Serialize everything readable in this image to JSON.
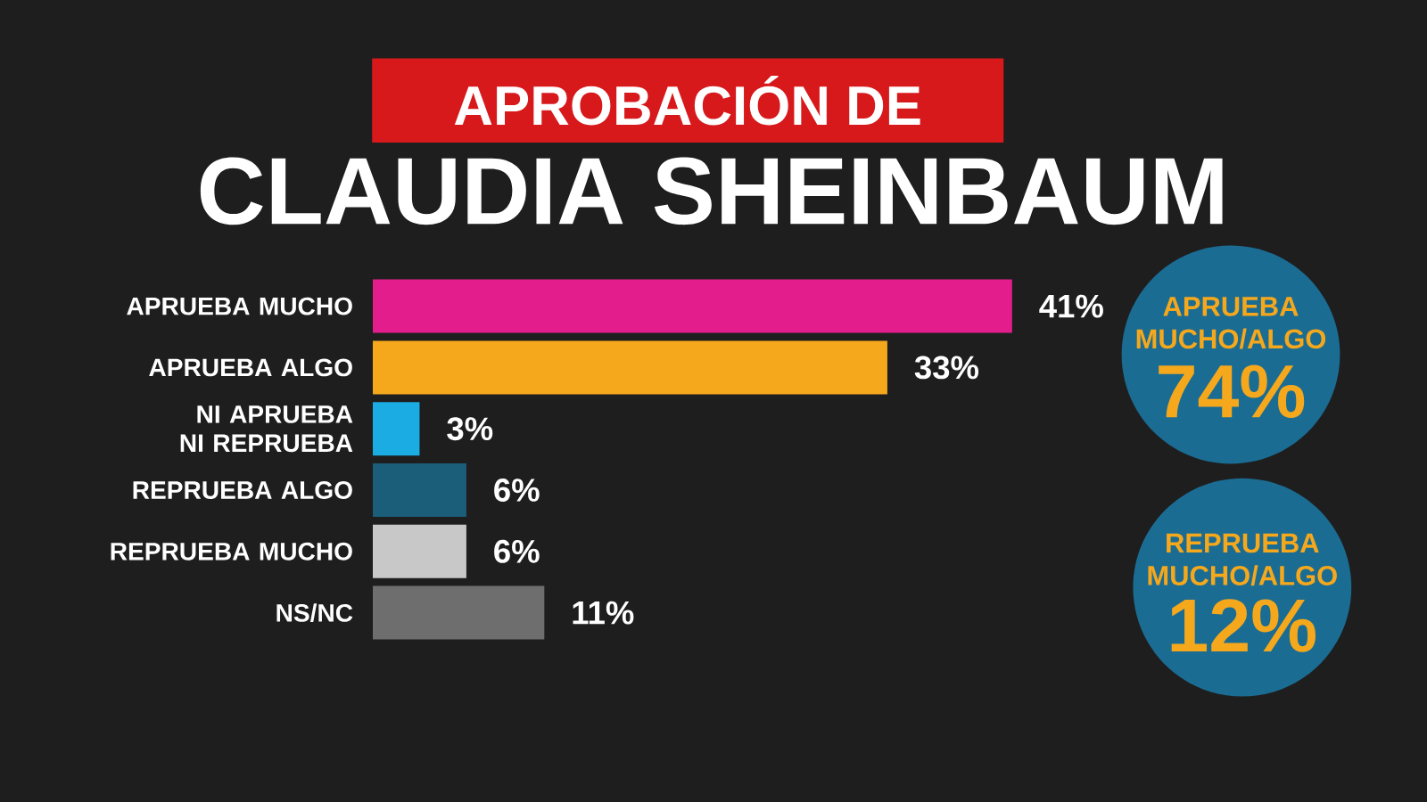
{
  "chart_data": {
    "type": "bar",
    "orientation": "horizontal",
    "title": "APROBACIÓN DE",
    "subtitle": "CLAUDIA SHEINBAUM",
    "categories": [
      "APRUEBA MUCHO",
      "APRUEBA ALGO",
      "NI APRUEBA NI REPRUEBA",
      "REPRUEBA ALGO",
      "REPRUEBA MUCHO",
      "NS/NC"
    ],
    "values": [
      41,
      33,
      3,
      6,
      6,
      11
    ],
    "colors": [
      "#e31e8c",
      "#f5a81c",
      "#1aace3",
      "#1b5e7a",
      "#c8c8c8",
      "#6e6e6e"
    ],
    "value_labels": [
      "41%",
      "33%",
      "3%",
      "6%",
      "6%",
      "11%"
    ],
    "tick_labels": "y",
    "annotations": [
      "APRUEBA MUCHO/ALGO",
      "74%",
      "REPRUEBA MUCHO/ALGO",
      "12%"
    ]
  }
}
